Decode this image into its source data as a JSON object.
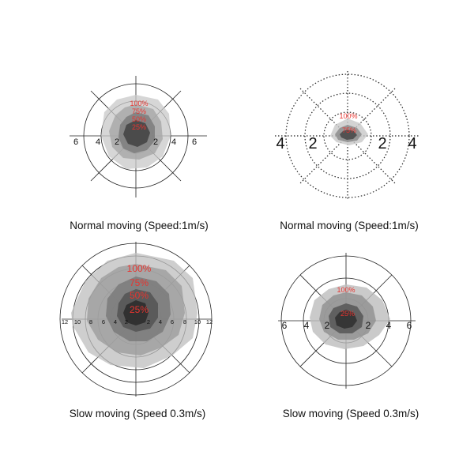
{
  "panels": [
    {
      "caption": "Normal moving (Speed:1m/s)",
      "tick_labels": [
        "6",
        "4",
        "2",
        "2",
        "4",
        "6"
      ],
      "percent_labels": [
        "100%",
        "75%",
        "50%",
        "25%"
      ],
      "ring_style": "solid",
      "percent_color": "#e8342f"
    },
    {
      "caption": "Normal moving (Speed:1m/s)",
      "tick_labels": [
        "4",
        "2",
        "2",
        "4"
      ],
      "percent_labels": [
        "100%",
        "75%"
      ],
      "ring_style": "dotted",
      "percent_color": "#e8342f"
    },
    {
      "caption": "Slow moving (Speed 0.3m/s)",
      "tick_labels": [
        "12",
        "10",
        "8",
        "6",
        "4",
        "2",
        "2",
        "4",
        "6",
        "8",
        "10",
        "12"
      ],
      "percent_labels": [
        "100%",
        "75%",
        "50%",
        "25%"
      ],
      "ring_style": "solid",
      "percent_color": "#e8342f"
    },
    {
      "caption": "Slow moving (Speed 0.3m/s)",
      "tick_labels": [
        "6",
        "4",
        "2",
        "2",
        "4",
        "6"
      ],
      "percent_labels": [
        "100%",
        "25%"
      ],
      "ring_style": "solid",
      "percent_color": "#e8342f"
    }
  ]
}
